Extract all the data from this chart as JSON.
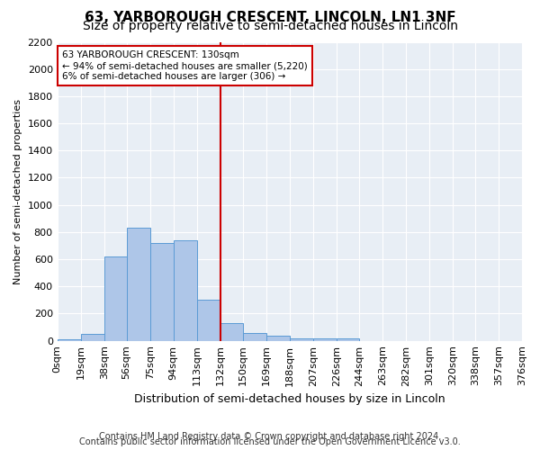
{
  "title1": "63, YARBOROUGH CRESCENT, LINCOLN, LN1 3NF",
  "title2": "Size of property relative to semi-detached houses in Lincoln",
  "xlabel": "Distribution of semi-detached houses by size in Lincoln",
  "ylabel": "Number of semi-detached properties",
  "footnote1": "Contains HM Land Registry data © Crown copyright and database right 2024.",
  "footnote2": "Contains public sector information licensed under the Open Government Licence v3.0.",
  "bins": [
    0,
    19,
    38,
    56,
    75,
    94,
    113,
    132,
    150,
    169,
    188,
    207,
    226,
    244,
    263,
    282,
    301,
    320,
    338,
    357,
    376
  ],
  "bin_labels": [
    "0sqm",
    "19sqm",
    "38sqm",
    "56sqm",
    "75sqm",
    "94sqm",
    "113sqm",
    "132sqm",
    "150sqm",
    "169sqm",
    "188sqm",
    "207sqm",
    "226sqm",
    "244sqm",
    "263sqm",
    "282sqm",
    "301sqm",
    "320sqm",
    "338sqm",
    "357sqm",
    "376sqm"
  ],
  "values": [
    10,
    50,
    620,
    830,
    720,
    740,
    300,
    130,
    60,
    40,
    20,
    20,
    15,
    0,
    0,
    0,
    0,
    0,
    0,
    0
  ],
  "bar_color": "#aec6e8",
  "bar_edge_color": "#5b9bd5",
  "property_line_x": 132,
  "property_line_color": "#cc0000",
  "annotation_text": "63 YARBOROUGH CRESCENT: 130sqm\n← 94% of semi-detached houses are smaller (5,220)\n6% of semi-detached houses are larger (306) →",
  "annotation_box_color": "#cc0000",
  "ylim": [
    0,
    2200
  ],
  "yticks": [
    0,
    200,
    400,
    600,
    800,
    1000,
    1200,
    1400,
    1600,
    1800,
    2000,
    2200
  ],
  "background_color": "#e8eef5",
  "grid_color": "#ffffff",
  "title1_fontsize": 11,
  "title2_fontsize": 10,
  "xlabel_fontsize": 9,
  "ylabel_fontsize": 8,
  "tick_fontsize": 8,
  "footnote_fontsize": 7
}
